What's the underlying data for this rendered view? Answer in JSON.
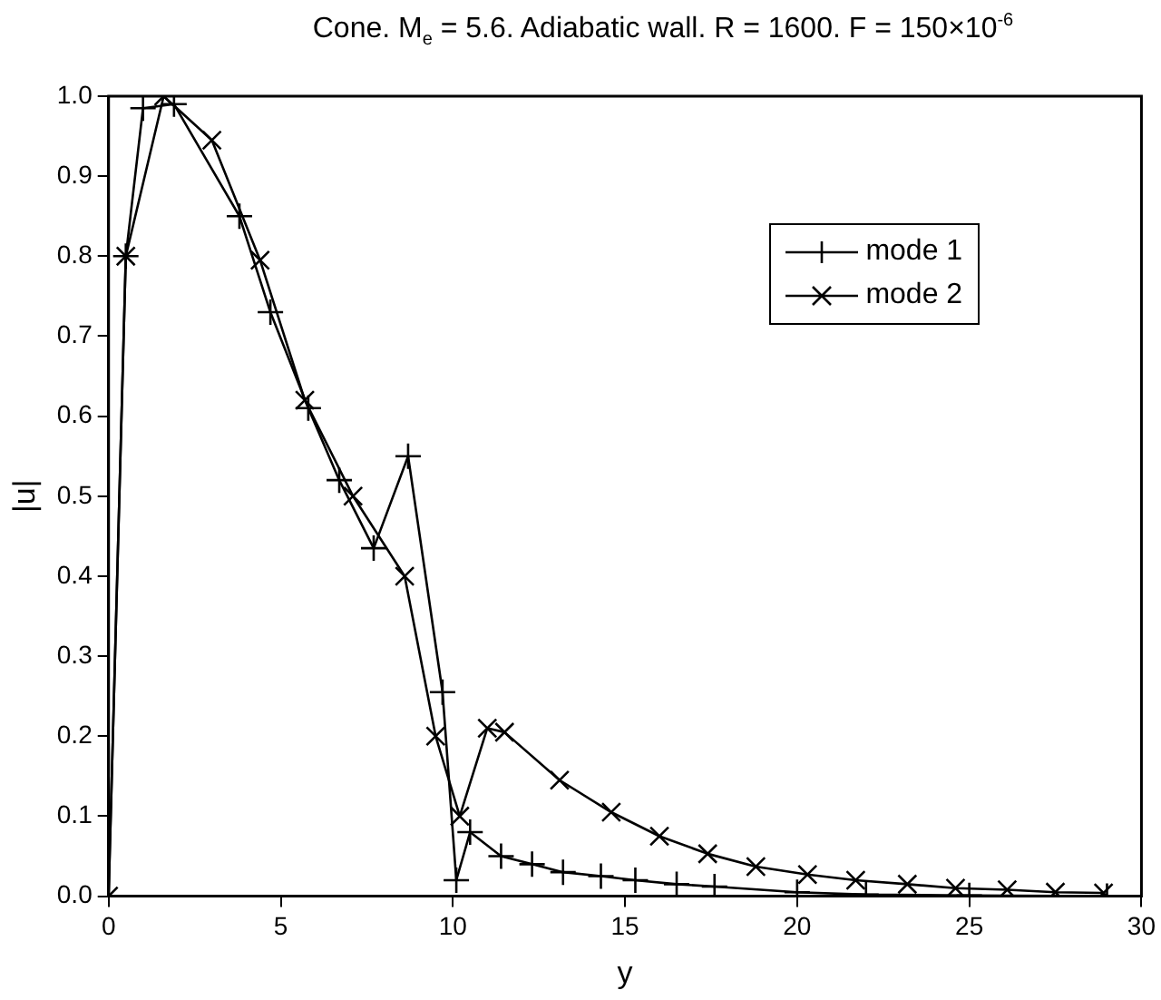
{
  "chart_data": {
    "type": "line",
    "title": "Cone. M$_{e}$ = 5.6. Adiabatic wall. R = 1600. F = 150×10$^{-6}$",
    "xlabel": "y",
    "ylabel": "|u|",
    "xlim": [
      0,
      30
    ],
    "xticks": [
      0,
      5,
      10,
      15,
      20,
      25,
      30
    ],
    "ylim": [
      0,
      1
    ],
    "yticks": [
      {
        "value": 0,
        "label": "0.0"
      },
      {
        "value": 0.1,
        "label": "0.1"
      },
      {
        "value": 0.2,
        "label": "0.2"
      },
      {
        "value": 0.3,
        "label": "0.3"
      },
      {
        "value": 0.4,
        "label": "0.4"
      },
      {
        "value": 0.5,
        "label": "0.5"
      },
      {
        "value": 0.6,
        "label": "0.6"
      },
      {
        "value": 0.7,
        "label": "0.7"
      },
      {
        "value": 0.8,
        "label": "0.8"
      },
      {
        "value": 0.9,
        "label": "0.9"
      },
      {
        "value": 1,
        "label": "1.0"
      }
    ],
    "grid": false,
    "legend": "top right",
    "line_style": "solid",
    "series": [
      {
        "name": "mode 1",
        "color": "#000000",
        "marker": "cross",
        "x": [
          0,
          0.5,
          1.0,
          1.9,
          3.8,
          4.7,
          5.8,
          6.7,
          7.7,
          8.7,
          9.7,
          10.1,
          10.5,
          11.4,
          12.3,
          13.2,
          14.3,
          15.3,
          16.5,
          17.6,
          20,
          22,
          25,
          29
        ],
        "values": [
          0,
          0.8,
          0.985,
          0.99,
          0.85,
          0.73,
          0.61,
          0.52,
          0.435,
          0.55,
          0.255,
          0.02,
          0.08,
          0.05,
          0.04,
          0.03,
          0.025,
          0.02,
          0.015,
          0.012,
          0.005,
          0.002,
          0.001,
          0
        ]
      },
      {
        "name": "mode 2",
        "color": "#000000",
        "marker": "x",
        "x": [
          0,
          0.5,
          1.6,
          3.0,
          4.4,
          5.7,
          7.1,
          8.6,
          9.5,
          10.2,
          11.0,
          11.5,
          13.1,
          14.6,
          16.0,
          17.4,
          18.8,
          20.3,
          21.7,
          23.2,
          24.6,
          26.1,
          27.5,
          28.9
        ],
        "values": [
          0,
          0.8,
          1.0,
          0.945,
          0.795,
          0.62,
          0.5,
          0.4,
          0.2,
          0.1,
          0.21,
          0.205,
          0.145,
          0.105,
          0.075,
          0.053,
          0.037,
          0.027,
          0.02,
          0.015,
          0.01,
          0.008,
          0.005,
          0.004
        ]
      }
    ]
  }
}
